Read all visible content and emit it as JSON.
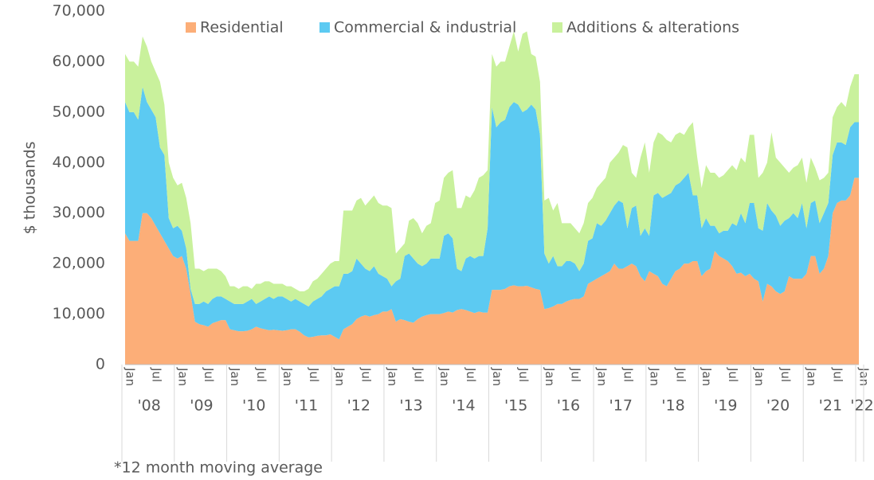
{
  "chart_data": {
    "type": "stacked_area",
    "y_label": "$ thousands",
    "footnote": "*12 month moving average",
    "legend": "top",
    "categories": [
      "Jan",
      null,
      null,
      null,
      null,
      null,
      "Jul",
      null,
      null,
      null,
      null,
      null,
      "Jan",
      null,
      null,
      null,
      null,
      null,
      "Jul",
      null,
      null,
      null,
      null,
      null,
      "Jan",
      null,
      null,
      null,
      null,
      null,
      "Jul",
      null,
      null,
      null,
      null,
      null,
      "Jan",
      null,
      null,
      null,
      null,
      null,
      "Jul",
      null,
      null,
      null,
      null,
      null,
      "Jan",
      null,
      null,
      null,
      null,
      null,
      "Jul",
      null,
      null,
      null,
      null,
      null,
      "Jan",
      null,
      null,
      null,
      null,
      null,
      "Jul",
      null,
      null,
      null,
      null,
      null,
      "Jan",
      null,
      null,
      null,
      null,
      null,
      "Jul",
      null,
      null,
      null,
      null,
      null,
      "Jan",
      null,
      null,
      null,
      null,
      null,
      "Jul",
      null,
      null,
      null,
      null,
      null,
      "Jan",
      null,
      null,
      null,
      null,
      null,
      "Jul",
      null,
      null,
      null,
      null,
      null,
      "Jan",
      null,
      null,
      null,
      null,
      null,
      "Jul",
      null,
      null,
      null,
      null,
      null,
      "Jan",
      null,
      null,
      null,
      null,
      null,
      "Jul",
      null,
      null,
      null,
      null,
      null,
      "Jan",
      null,
      null,
      null,
      null,
      null,
      "Jul",
      null,
      null,
      null,
      null,
      null,
      "Jan",
      null,
      null,
      null,
      null,
      null,
      "Jul",
      null,
      null,
      null,
      null,
      null,
      "Jan",
      null,
      null,
      null,
      null,
      null,
      "Jul",
      null,
      null,
      null,
      null,
      null,
      "Jan"
    ],
    "groups": [
      "'08",
      "'09",
      "'10",
      "'11",
      "'12",
      "'13",
      "'14",
      "'15",
      "'16",
      "'17",
      "'18",
      "'19",
      "'20",
      "'21",
      "'22"
    ],
    "ylim": [
      0,
      70000
    ],
    "yticks": [
      0,
      {
        "value": 10000,
        "label": "10,000"
      },
      {
        "value": 20000,
        "label": "20,000"
      },
      {
        "value": 30000,
        "label": "30,000"
      },
      {
        "value": 40000,
        "label": "40,000"
      },
      {
        "value": 50000,
        "label": "50,000"
      },
      {
        "value": 60000,
        "label": "60,000"
      },
      {
        "value": 70000,
        "label": "70,000"
      }
    ],
    "series": [
      {
        "name": "Residential",
        "color": "#fcae78",
        "values": [
          26000,
          24500,
          24500,
          24500,
          30000,
          30000,
          29000,
          27500,
          26000,
          24500,
          23000,
          21500,
          21000,
          21500,
          19000,
          14000,
          8500,
          8000,
          7800,
          7500,
          8200,
          8500,
          8800,
          8800,
          7000,
          6800,
          6600,
          6600,
          6700,
          7000,
          7500,
          7200,
          7000,
          6800,
          6900,
          6800,
          6700,
          6800,
          7000,
          7000,
          6500,
          5800,
          5400,
          5500,
          5700,
          5800,
          5800,
          6000,
          5500,
          5000,
          7000,
          7500,
          8000,
          9000,
          9500,
          9800,
          9500,
          9800,
          10000,
          10500,
          10500,
          11000,
          8500,
          9000,
          8800,
          8500,
          8300,
          9000,
          9500,
          9800,
          10000,
          10000,
          10000,
          10200,
          10500,
          10300,
          10800,
          11000,
          10800,
          10500,
          10200,
          10500,
          10300,
          10300,
          14800,
          14800,
          14800,
          15000,
          15500,
          15700,
          15500,
          15500,
          15600,
          15300,
          15000,
          14800,
          11000,
          11200,
          11500,
          12000,
          12000,
          12500,
          12800,
          13000,
          13000,
          13500,
          16000,
          16500,
          17000,
          17500,
          18000,
          18500,
          20000,
          19000,
          19000,
          19500,
          20000,
          19500,
          17500,
          16500,
          18500,
          18000,
          17500,
          16000,
          15500,
          17000,
          18500,
          19000,
          20000,
          20000,
          20500,
          20500,
          17500,
          18500,
          19000,
          22500,
          21500,
          21000,
          20500,
          19500,
          18000,
          18200,
          17500,
          18000,
          17000,
          16500,
          12500,
          16000,
          15500,
          14500,
          14000,
          14500,
          17500,
          17000,
          17000,
          17000,
          18000,
          21500,
          21500,
          18000,
          19000,
          21500,
          30000,
          32000,
          32500,
          32500,
          33500,
          37000,
          37000
        ]
      },
      {
        "name": "Commercial & industrial",
        "color": "#5ccaf2",
        "values": [
          26000,
          25500,
          25500,
          24000,
          25000,
          22000,
          21500,
          21500,
          17000,
          17000,
          6000,
          5500,
          6500,
          5000,
          4000,
          1000,
          3500,
          4000,
          4700,
          4500,
          4800,
          5000,
          4700,
          4200,
          5500,
          5200,
          5400,
          5400,
          5800,
          6000,
          4500,
          5300,
          6000,
          6700,
          6100,
          6700,
          6800,
          6200,
          5500,
          6000,
          6000,
          6200,
          6100,
          7000,
          7300,
          7700,
          8700,
          9000,
          10000,
          10500,
          11000,
          10500,
          10500,
          12000,
          10500,
          9200,
          9000,
          9700,
          8000,
          7000,
          6500,
          4500,
          8000,
          8000,
          12700,
          13500,
          12700,
          11000,
          10000,
          10200,
          11000,
          11000,
          11000,
          15300,
          15500,
          14700,
          8200,
          7500,
          10200,
          11000,
          10800,
          11000,
          11200,
          16700,
          36200,
          32200,
          33200,
          33500,
          35500,
          36300,
          36000,
          34500,
          34900,
          36200,
          35500,
          30700,
          11000,
          8800,
          10000,
          7500,
          7500,
          8000,
          7700,
          7000,
          5500,
          6500,
          8500,
          8500,
          11000,
          10000,
          10500,
          11500,
          11500,
          13500,
          13000,
          7500,
          11000,
          12000,
          8000,
          10500,
          7000,
          15500,
          16500,
          17000,
          18000,
          17000,
          17000,
          17000,
          17000,
          18000,
          13000,
          13000,
          9500,
          10500,
          8500,
          5000,
          4500,
          5500,
          6000,
          8500,
          9500,
          11800,
          10500,
          14000,
          15000,
          10500,
          14000,
          16000,
          15000,
          15000,
          13500,
          14000,
          11500,
          13000,
          12000,
          15000,
          9000,
          10500,
          11000,
          10000,
          11000,
          10500,
          11500,
          12000,
          11500,
          11000,
          13500,
          11000,
          11000
        ]
      },
      {
        "name": "Additions & alterations",
        "color": "#c9f19c",
        "values": [
          9500,
          10000,
          10000,
          10500,
          10000,
          11000,
          9500,
          9000,
          13000,
          10000,
          11000,
          10000,
          8000,
          9500,
          10000,
          13000,
          7000,
          7000,
          6000,
          7000,
          6000,
          5500,
          5000,
          4500,
          3000,
          3500,
          3000,
          3500,
          3000,
          2000,
          4000,
          3500,
          3500,
          3000,
          3000,
          2500,
          2500,
          2500,
          3000,
          2000,
          2000,
          2500,
          3500,
          4000,
          4000,
          4500,
          4500,
          5000,
          5000,
          5000,
          12500,
          12500,
          12000,
          11500,
          13000,
          12500,
          14000,
          14000,
          14000,
          14000,
          14500,
          15500,
          5500,
          6000,
          2500,
          6500,
          8000,
          8000,
          6500,
          7500,
          7000,
          11000,
          11500,
          11500,
          12000,
          13500,
          12000,
          12500,
          12500,
          11500,
          13500,
          15500,
          16000,
          11500,
          10500,
          12000,
          12000,
          11500,
          12000,
          14000,
          10500,
          15500,
          15500,
          10000,
          10500,
          10500,
          10500,
          13000,
          9000,
          12500,
          8500,
          7500,
          7500,
          7000,
          7500,
          8000,
          7500,
          8000,
          7000,
          8500,
          8500,
          10000,
          9500,
          9500,
          11500,
          16000,
          7000,
          5500,
          15500,
          17000,
          12500,
          10500,
          12000,
          12500,
          11000,
          10000,
          10000,
          10000,
          8500,
          9000,
          14500,
          7500,
          8000,
          10500,
          10500,
          10500,
          11000,
          11000,
          12000,
          11500,
          11000,
          11000,
          12000,
          13500,
          13500,
          10000,
          11500,
          8000,
          15500,
          11500,
          12500,
          10500,
          9000,
          9000,
          10500,
          9000,
          9000,
          9000,
          6500,
          8500,
          7000,
          6000,
          7500,
          7000,
          8000,
          7500,
          8000,
          9500,
          9500
        ]
      }
    ]
  }
}
